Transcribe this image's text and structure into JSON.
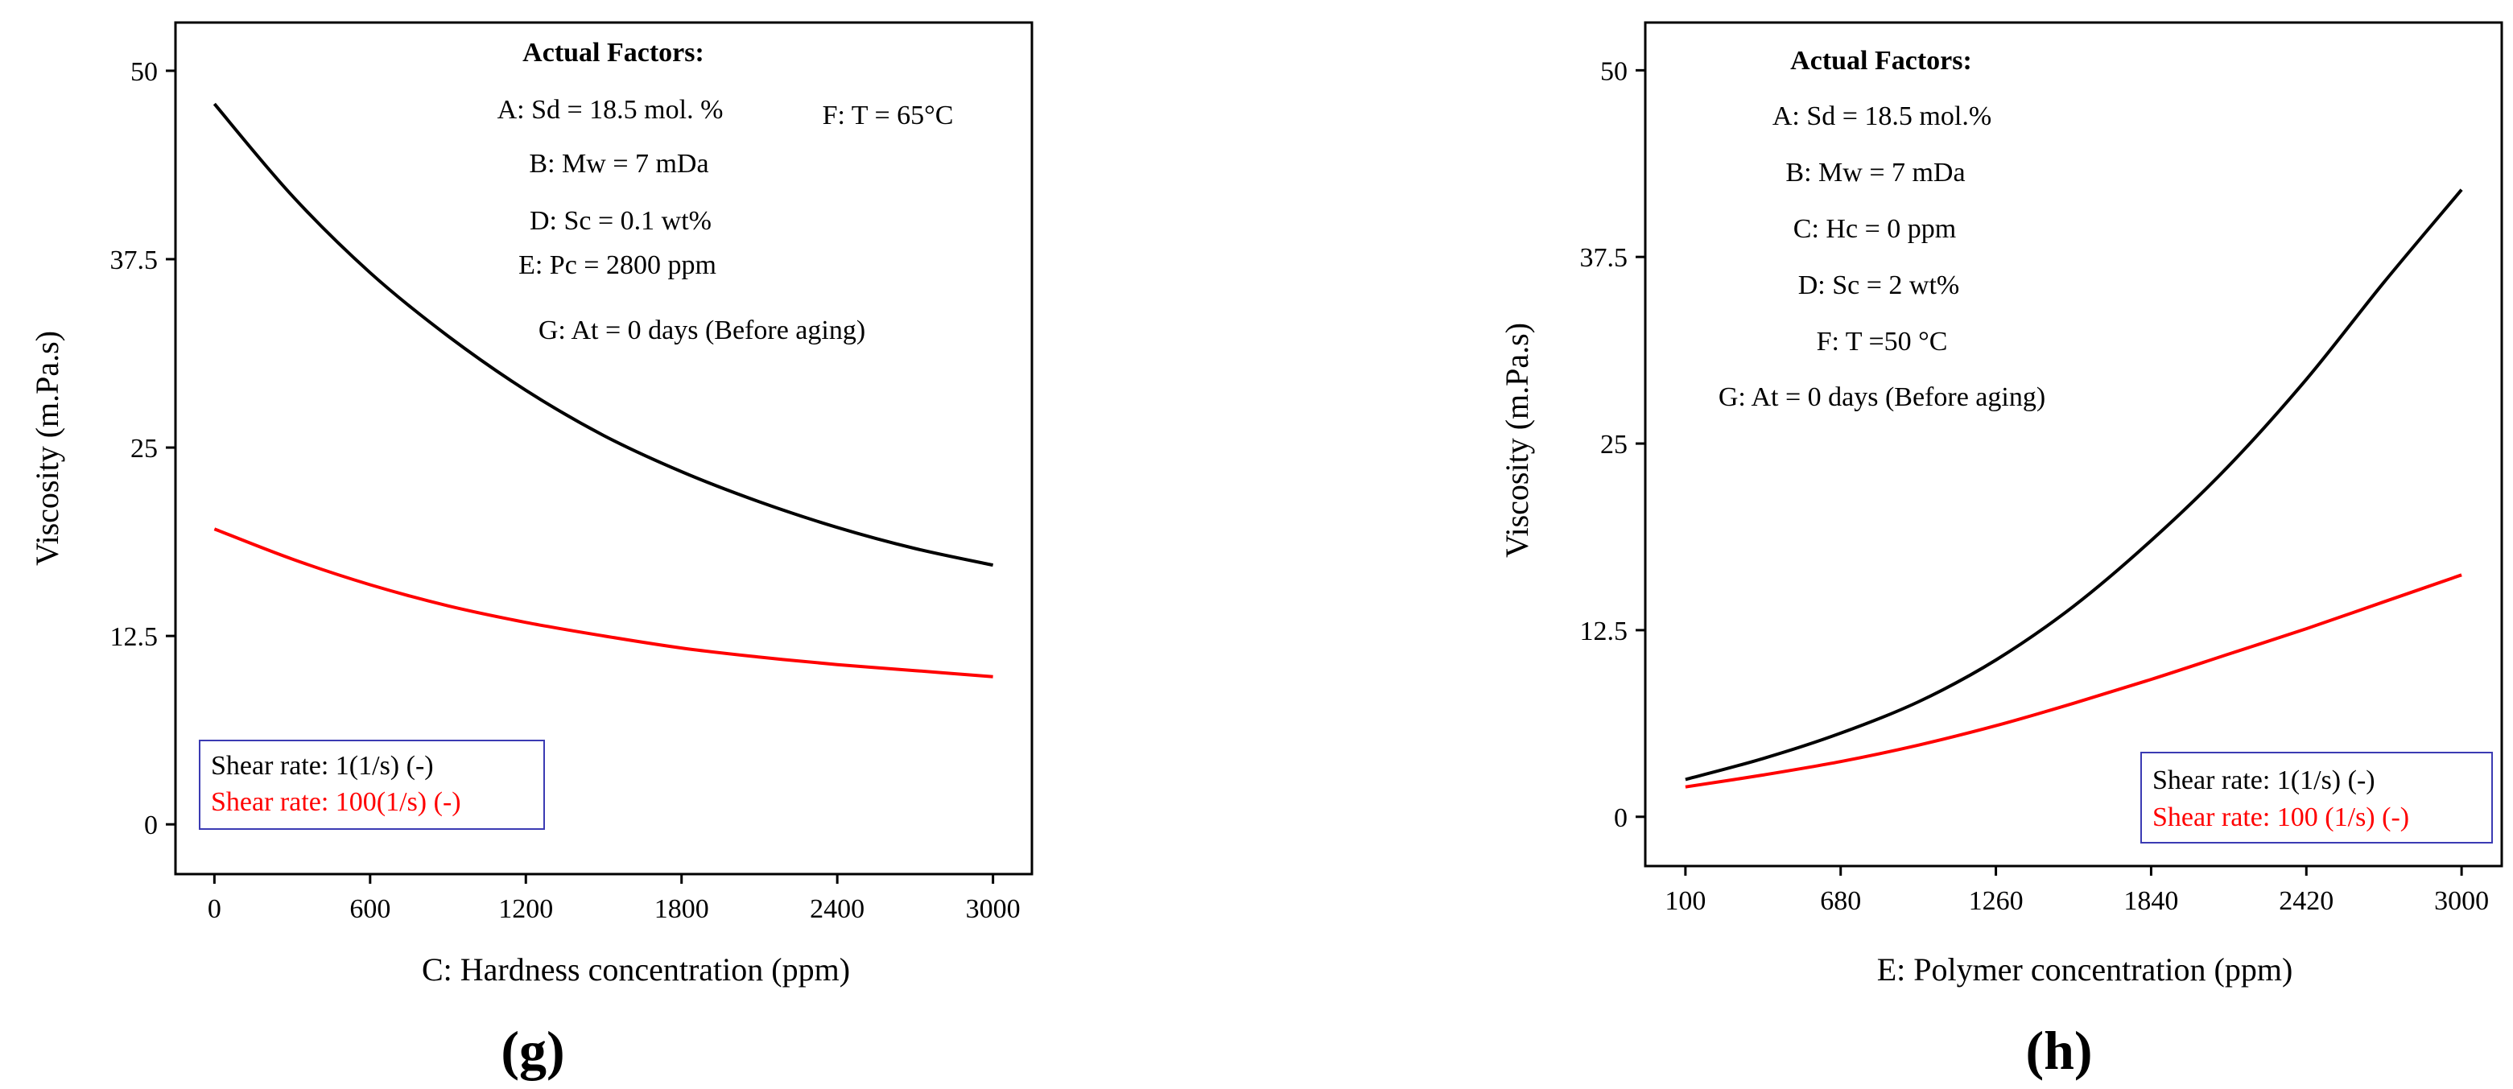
{
  "chart_data": [
    {
      "type": "line",
      "panel_label": "(g)",
      "xlabel": "C: Hardness concentration (ppm)",
      "ylabel": "Viscosity (m.Pa.s)",
      "xlim": [
        -150,
        3150
      ],
      "ylim": [
        -3.3,
        53.2
      ],
      "x_ticks": [
        0,
        600,
        1200,
        1800,
        2400,
        3000
      ],
      "x_tick_labels": [
        "0",
        "600",
        "1200",
        "1800",
        "2400",
        "3000"
      ],
      "y_ticks": [
        0,
        12.5,
        25,
        37.5,
        50
      ],
      "y_tick_labels": [
        "0",
        "12.5",
        "25",
        "37.5",
        "50"
      ],
      "factors_title": "Actual Factors:",
      "factors": [
        "A: Sd = 18.5 mol. %",
        "F: T = 65°C",
        "B: Mw = 7 mDa",
        "D: Sc = 0.1 wt%",
        "E: Pc = 2800 ppm",
        "G: At = 0 days (Before aging)"
      ],
      "legend": [
        "Shear rate: 1(1/s) (-)",
        "Shear rate: 100(1/s) (-)"
      ],
      "series": [
        {
          "name": "Shear rate: 1(1/s) (-)",
          "color": "#000000",
          "x": [
            0,
            300,
            600,
            900,
            1200,
            1500,
            1800,
            2100,
            2400,
            2700,
            3000
          ],
          "values": [
            47.8,
            41.7,
            36.6,
            32.4,
            28.8,
            25.8,
            23.4,
            21.4,
            19.7,
            18.3,
            17.2
          ]
        },
        {
          "name": "Shear rate: 100(1/s) (-)",
          "color": "#ff0000",
          "x": [
            0,
            300,
            600,
            900,
            1200,
            1500,
            1800,
            2100,
            2400,
            2700,
            3000
          ],
          "values": [
            19.6,
            17.6,
            15.9,
            14.5,
            13.4,
            12.5,
            11.7,
            11.1,
            10.6,
            10.2,
            9.8
          ]
        }
      ]
    },
    {
      "type": "line",
      "panel_label": "(h)",
      "xlabel": "E: Polymer concentration (ppm)",
      "ylabel": "Viscosity (m.Pa.s)",
      "xlim": [
        -50,
        3150
      ],
      "ylim": [
        -3.3,
        53.2
      ],
      "x_ticks": [
        100,
        680,
        1260,
        1840,
        2420,
        3000
      ],
      "x_tick_labels": [
        "100",
        "680",
        "1260",
        "1840",
        "2420",
        "3000"
      ],
      "y_ticks": [
        0,
        12.5,
        25,
        37.5,
        50
      ],
      "y_tick_labels": [
        "0",
        "12.5",
        "25",
        "37.5",
        "50"
      ],
      "factors_title": "Actual Factors:",
      "factors": [
        "A: Sd = 18.5 mol.%",
        "B: Mw = 7 mDa",
        "C: Hc = 0 ppm",
        "D: Sc =  2  wt%",
        "F: T =50 °C",
        "G: At = 0 days (Before aging)"
      ],
      "legend": [
        "Shear rate: 1(1/s) (-)",
        "Shear rate: 100 (1/s) (-)"
      ],
      "series": [
        {
          "name": "Shear rate: 1(1/s) (-)",
          "color": "#000000",
          "x": [
            100,
            390,
            680,
            970,
            1260,
            1550,
            1840,
            2130,
            2420,
            2710,
            3000
          ],
          "values": [
            2.5,
            3.9,
            5.6,
            7.7,
            10.5,
            14.1,
            18.5,
            23.5,
            29.3,
            35.8,
            42.0
          ]
        },
        {
          "name": "Shear rate: 100 (1/s) (-)",
          "color": "#ff0000",
          "x": [
            100,
            390,
            680,
            970,
            1260,
            1550,
            1840,
            2130,
            2420,
            2710,
            3000
          ],
          "values": [
            2.0,
            2.8,
            3.7,
            4.8,
            6.1,
            7.6,
            9.2,
            10.9,
            12.6,
            14.4,
            16.2
          ]
        }
      ]
    }
  ]
}
